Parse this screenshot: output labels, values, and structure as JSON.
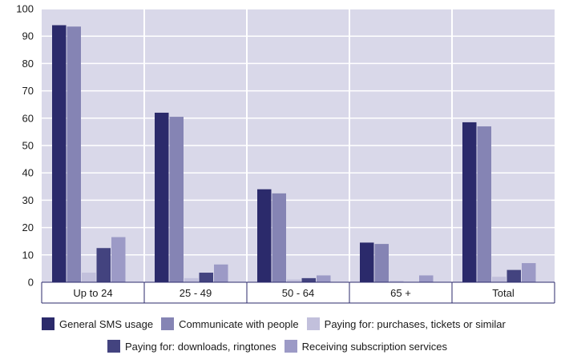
{
  "chart_data": {
    "type": "bar",
    "title": "",
    "xlabel": "",
    "ylabel": "",
    "ylim": [
      0,
      100
    ],
    "yticks": [
      0,
      10,
      20,
      30,
      40,
      50,
      60,
      70,
      80,
      90,
      100
    ],
    "grid": true,
    "legend_position": "bottom",
    "categories": [
      "Up to 24",
      "25 - 49",
      "50 - 64",
      "65 +",
      "Total"
    ],
    "series": [
      {
        "name": "General SMS usage",
        "color": "#2b2a6b",
        "values": [
          94,
          62,
          34,
          14.5,
          58.5
        ]
      },
      {
        "name": "Communicate with people",
        "color": "#8584b4",
        "values": [
          93.5,
          60.5,
          32.5,
          14,
          57
        ]
      },
      {
        "name": "Paying for: purchases, tickets or similar",
        "color": "#c2c0dc",
        "values": [
          3.5,
          1.5,
          1,
          0.5,
          2
        ]
      },
      {
        "name": "Paying for: downloads, ringtones",
        "color": "#43437f",
        "values": [
          12.5,
          3.5,
          1.5,
          0,
          4.5
        ]
      },
      {
        "name": "Receiving subscription services",
        "color": "#9c9ac6",
        "values": [
          16.5,
          6.5,
          2.5,
          2.5,
          7
        ]
      }
    ],
    "plot_background": "#d9d8e9",
    "grid_color": "#ffffff"
  }
}
